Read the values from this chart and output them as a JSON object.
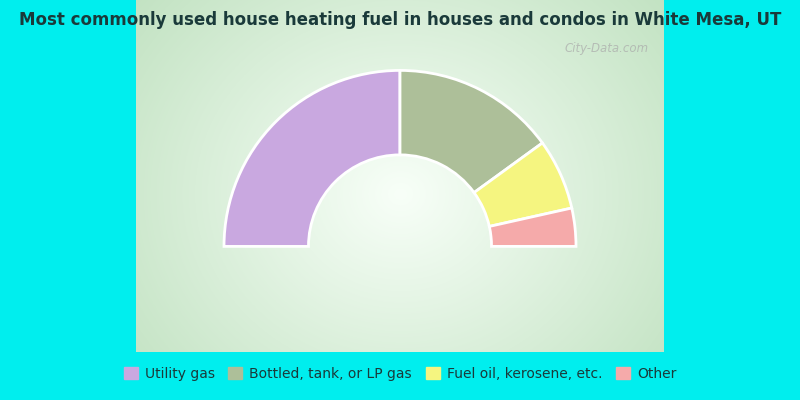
{
  "title": "Most commonly used house heating fuel in houses and condos in White Mesa, UT",
  "title_fontsize": 12,
  "title_color": "#1a3a3a",
  "background_color": "#00EEEE",
  "segments": [
    {
      "label": "Utility gas",
      "value": 50,
      "color": "#C9A8E0"
    },
    {
      "label": "Bottled, tank, or LP gas",
      "value": 30,
      "color": "#ADBF99"
    },
    {
      "label": "Fuel oil, kerosene, etc.",
      "value": 13,
      "color": "#F5F580"
    },
    {
      "label": "Other",
      "value": 7,
      "color": "#F5AAAA"
    }
  ],
  "legend_fontsize": 10,
  "legend_color": "#1a3a3a",
  "watermark": "City-Data.com",
  "outer_r": 1.0,
  "inner_r": 0.52
}
